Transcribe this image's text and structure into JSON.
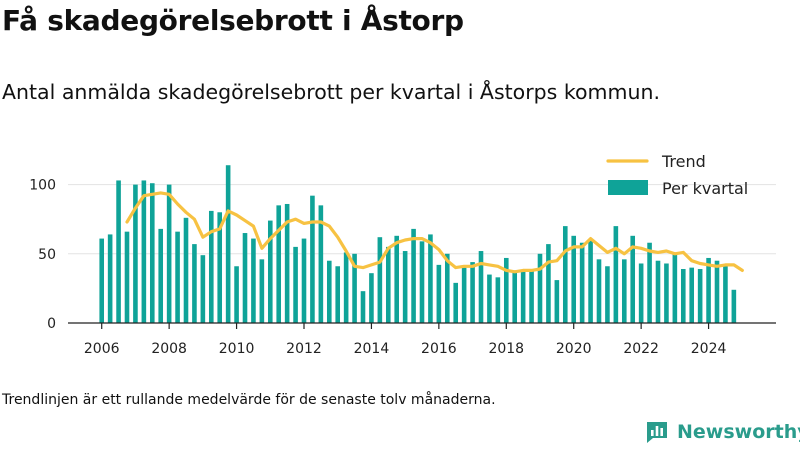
{
  "title": "Få skadegörelsebrott i Åstorp",
  "subtitle": "Antal anmälda skadegörelsebrott per kvartal i Åstorps kommun.",
  "footnote": "Trendlinjen är ett rullande medelvärde för de senaste tolv månaderna.",
  "brand": {
    "name": "Newsworthy",
    "icon": "bar-chart-icon"
  },
  "colors": {
    "bar": "#0fa398",
    "trend": "#f7c242",
    "grid": "#e3e3e3",
    "axis": "#222222",
    "brand": "#2a9c8c"
  },
  "chart_data": {
    "type": "bar",
    "x_start": 2006.0,
    "x_step": 0.25,
    "xlim": [
      2005.0,
      2026.0
    ],
    "ylim": [
      0,
      125
    ],
    "xticks": [
      2006,
      2008,
      2010,
      2012,
      2014,
      2016,
      2018,
      2020,
      2022,
      2024
    ],
    "yticks": [
      0,
      50,
      100
    ],
    "legend": {
      "position": "top-right",
      "entries": [
        "Trend",
        "Per kvartal"
      ]
    },
    "grid": "horizontal",
    "series": [
      {
        "name": "Per kvartal",
        "type": "bar",
        "values": [
          61,
          64,
          103,
          66,
          100,
          103,
          101,
          68,
          100,
          66,
          76,
          57,
          49,
          81,
          80,
          114,
          41,
          65,
          61,
          46,
          74,
          85,
          86,
          55,
          61,
          92,
          85,
          45,
          41,
          51,
          50,
          23,
          36,
          62,
          55,
          63,
          52,
          68,
          59,
          64,
          42,
          50,
          29,
          40,
          44,
          52,
          35,
          33,
          47,
          38,
          38,
          39,
          50,
          57,
          31,
          70,
          63,
          58,
          60,
          46,
          41,
          70,
          46,
          63,
          43,
          58,
          45,
          43,
          51,
          39,
          40,
          39,
          47,
          45,
          42,
          24
        ]
      },
      {
        "name": "Trend",
        "type": "line",
        "start": 2006.75,
        "values": [
          73,
          83,
          92,
          93,
          94,
          93,
          86,
          80,
          75,
          62,
          66,
          68,
          81,
          78,
          74,
          70,
          54,
          61,
          67,
          73,
          75,
          72,
          73,
          73,
          70,
          62,
          52,
          41,
          40,
          42,
          44,
          54,
          58,
          60,
          61,
          61,
          58,
          53,
          45,
          40,
          41,
          41,
          43,
          42,
          41,
          38,
          37,
          38,
          38,
          39,
          44,
          45,
          52,
          55,
          55,
          61,
          56,
          51,
          54,
          50,
          55,
          54,
          52,
          51,
          52,
          50,
          51,
          45,
          43,
          42,
          41,
          42,
          42,
          38
        ]
      }
    ]
  }
}
